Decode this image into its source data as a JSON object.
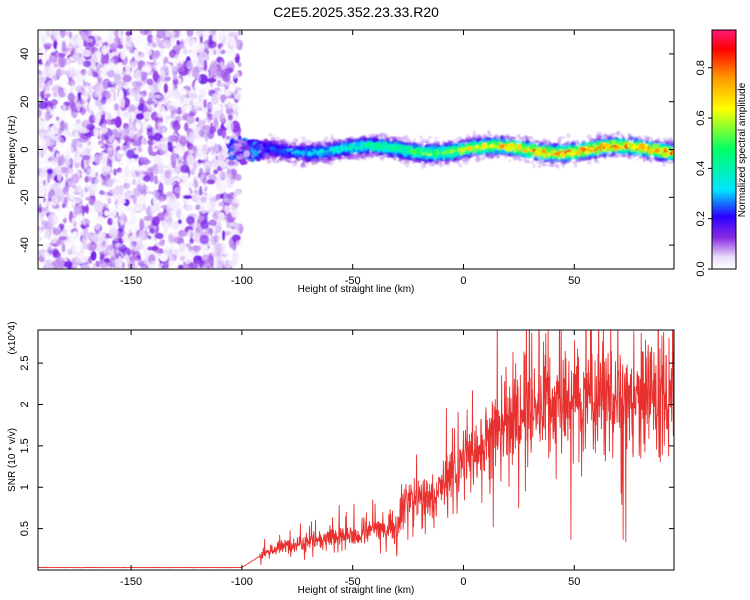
{
  "title": "C2E5.2025.352.23.33.R20",
  "chart_data": [
    {
      "type": "heatmap",
      "xlabel": "Height of straight line (km)",
      "ylabel": "Frequency (Hz)",
      "xlim": [
        -192,
        95
      ],
      "ylim": [
        -50,
        50
      ],
      "x_ticks": [
        -150,
        -100,
        -50,
        0,
        50
      ],
      "y_ticks": [
        -40,
        -20,
        0,
        20,
        40
      ],
      "colorbar": {
        "label": "Normalized spectral amplitude",
        "range": [
          0,
          0.95
        ],
        "ticks": [
          0.0,
          0.2,
          0.4,
          0.6,
          0.8
        ],
        "colormap": [
          "#ffffff",
          "#e9dcfb",
          "#8a2be2",
          "#2a00ff",
          "#00e5ff",
          "#00ff66",
          "#ffff00",
          "#ff9900",
          "#ff0000",
          "#ff1a7a"
        ]
      },
      "regions": [
        {
          "x_range": [
            -192,
            -105
          ],
          "freq_range": [
            -50,
            50
          ],
          "amplitude_range": [
            0.0,
            0.15
          ]
        },
        {
          "x_range": [
            -105,
            -90
          ],
          "center_freq": 0,
          "bandwidth": 6,
          "amplitude_range": [
            0.05,
            0.3
          ]
        },
        {
          "x_range": [
            -90,
            95
          ],
          "center_freq": 0,
          "bandwidth": 8,
          "amplitude_range": [
            0.1,
            0.9
          ]
        }
      ]
    },
    {
      "type": "line",
      "xlabel": "Height of straight line (km)",
      "ylabel": "SNR (10 * v/v)",
      "y_multiplier": "(x10^4)",
      "xlim": [
        -192,
        95
      ],
      "ylim": [
        0,
        2.9
      ],
      "x_ticks": [
        -150,
        -100,
        -50,
        0,
        50
      ],
      "y_ticks": [
        0.5,
        1.0,
        1.5,
        2.0,
        2.5
      ],
      "series": [
        {
          "color": "#e8312f",
          "x": [
            -192,
            -100,
            -90,
            -80,
            -70,
            -60,
            -50,
            -40,
            -30,
            -25,
            -20,
            -15,
            -10,
            -5,
            0,
            10,
            20,
            30,
            40,
            50,
            60,
            70,
            80,
            95
          ],
          "y": [
            0.03,
            0.03,
            0.2,
            0.3,
            0.35,
            0.4,
            0.4,
            0.5,
            0.55,
            0.9,
            0.85,
            0.85,
            1.0,
            1.2,
            1.3,
            1.55,
            1.75,
            1.95,
            2.0,
            2.05,
            2.1,
            2.05,
            2.1,
            2.1
          ]
        }
      ]
    }
  ]
}
